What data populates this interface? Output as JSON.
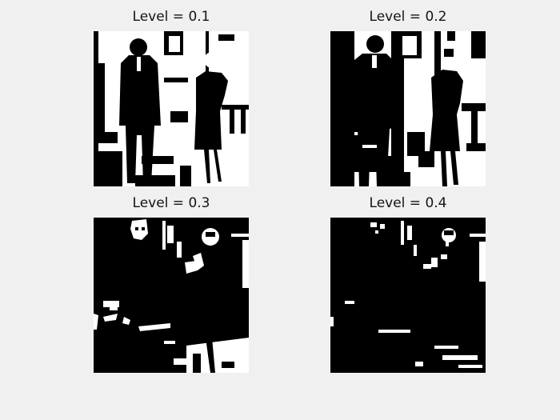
{
  "figure": {
    "background_color": "#f0f0f0",
    "panels": [
      {
        "title": "Level = 0.1",
        "threshold": 0.1
      },
      {
        "title": "Level = 0.2",
        "threshold": 0.2
      },
      {
        "title": "Level = 0.3",
        "threshold": 0.3
      },
      {
        "title": "Level = 0.4",
        "threshold": 0.4
      }
    ]
  }
}
